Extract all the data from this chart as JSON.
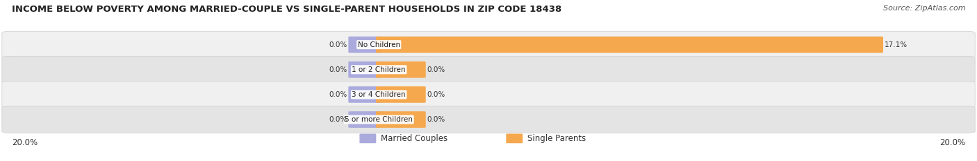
{
  "title": "INCOME BELOW POVERTY AMONG MARRIED-COUPLE VS SINGLE-PARENT HOUSEHOLDS IN ZIP CODE 18438",
  "source": "Source: ZipAtlas.com",
  "categories": [
    "No Children",
    "1 or 2 Children",
    "3 or 4 Children",
    "5 or more Children"
  ],
  "married_values": [
    0.0,
    0.0,
    0.0,
    0.0
  ],
  "single_values": [
    17.1,
    0.0,
    0.0,
    0.0
  ],
  "married_color": "#aaaadd",
  "single_color": "#f5a84e",
  "axis_max": 20.0,
  "title_fontsize": 9.5,
  "source_fontsize": 8.0,
  "label_fontsize": 7.5,
  "tick_fontsize": 8.5,
  "legend_fontsize": 8.5,
  "background_color": "#ffffff",
  "row_bg_even": "#f0f0f0",
  "row_bg_odd": "#e4e4e4",
  "min_bar_display": 1.5
}
